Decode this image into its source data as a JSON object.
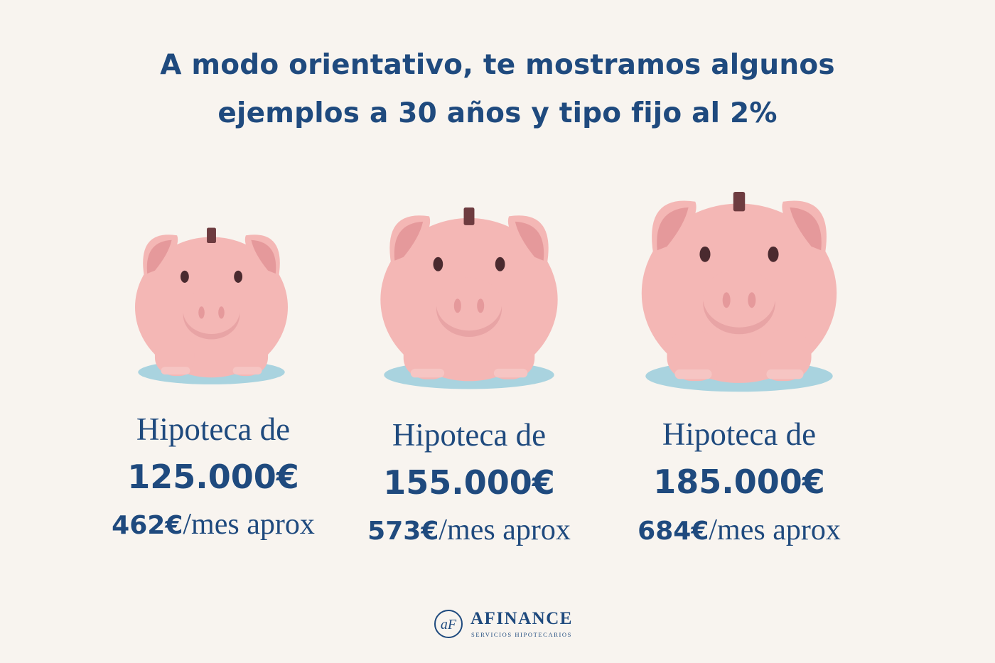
{
  "header": {
    "title_line1": "A modo orientativo, te mostramos algunos",
    "title_line2": "ejemplos a 30 años y tipo fijo al 2%"
  },
  "examples": [
    {
      "label": "Hipoteca de",
      "amount": "125.000€",
      "monthly_value": "462€",
      "monthly_suffix": "/mes aprox"
    },
    {
      "label": "Hipoteca de",
      "amount": "155.000€",
      "monthly_value": "573€",
      "monthly_suffix": "/mes aprox"
    },
    {
      "label": "Hipoteca de",
      "amount": "185.000€",
      "monthly_value": "684€",
      "monthly_suffix": "/mes aprox"
    }
  ],
  "brand": {
    "name": "AFINANCE",
    "tagline": "SERVICIOS HIPOTECARIOS",
    "mark": "aF"
  },
  "icons": [
    "piggy-bank-icon",
    "afinance-logo-icon"
  ],
  "colors": {
    "background": "#f8f4ef",
    "text": "#1f4a7e",
    "pig_body": "#f4b7b5",
    "pig_ear_inner": "#e5999b",
    "shadow": "#a9d3df"
  }
}
